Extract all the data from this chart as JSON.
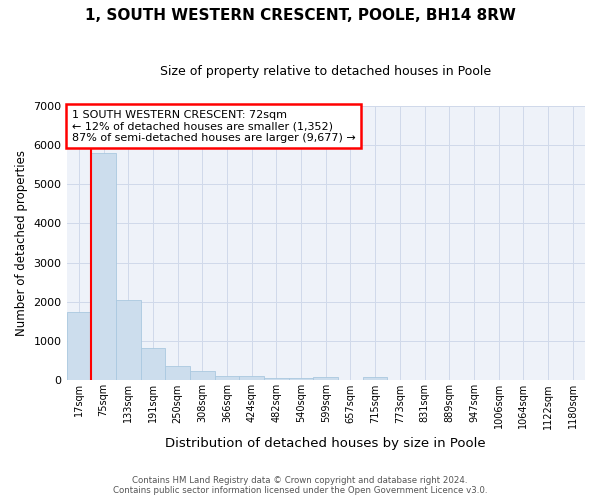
{
  "title": "1, SOUTH WESTERN CRESCENT, POOLE, BH14 8RW",
  "subtitle": "Size of property relative to detached houses in Poole",
  "xlabel": "Distribution of detached houses by size in Poole",
  "ylabel": "Number of detached properties",
  "footer_line1": "Contains HM Land Registry data © Crown copyright and database right 2024.",
  "footer_line2": "Contains public sector information licensed under the Open Government Licence v3.0.",
  "bar_labels": [
    "17sqm",
    "75sqm",
    "133sqm",
    "191sqm",
    "250sqm",
    "308sqm",
    "366sqm",
    "424sqm",
    "482sqm",
    "540sqm",
    "599sqm",
    "657sqm",
    "715sqm",
    "773sqm",
    "831sqm",
    "889sqm",
    "947sqm",
    "1006sqm",
    "1064sqm",
    "1122sqm",
    "1180sqm"
  ],
  "bar_values": [
    1750,
    5780,
    2060,
    820,
    370,
    230,
    110,
    110,
    70,
    60,
    80,
    0,
    80,
    0,
    0,
    0,
    0,
    0,
    0,
    0,
    0
  ],
  "bar_color": "#ccdded",
  "bar_edge_color": "#aac8e0",
  "annotation_line1": "1 SOUTH WESTERN CRESCENT: 72sqm",
  "annotation_line2": "← 12% of detached houses are smaller (1,352)",
  "annotation_line3": "87% of semi-detached houses are larger (9,677) →",
  "vline_x_index": 1,
  "ylim": [
    0,
    7000
  ],
  "grid_color": "#d0d9ea",
  "bg_color": "#eef2f9",
  "title_fontsize": 11,
  "subtitle_fontsize": 9
}
